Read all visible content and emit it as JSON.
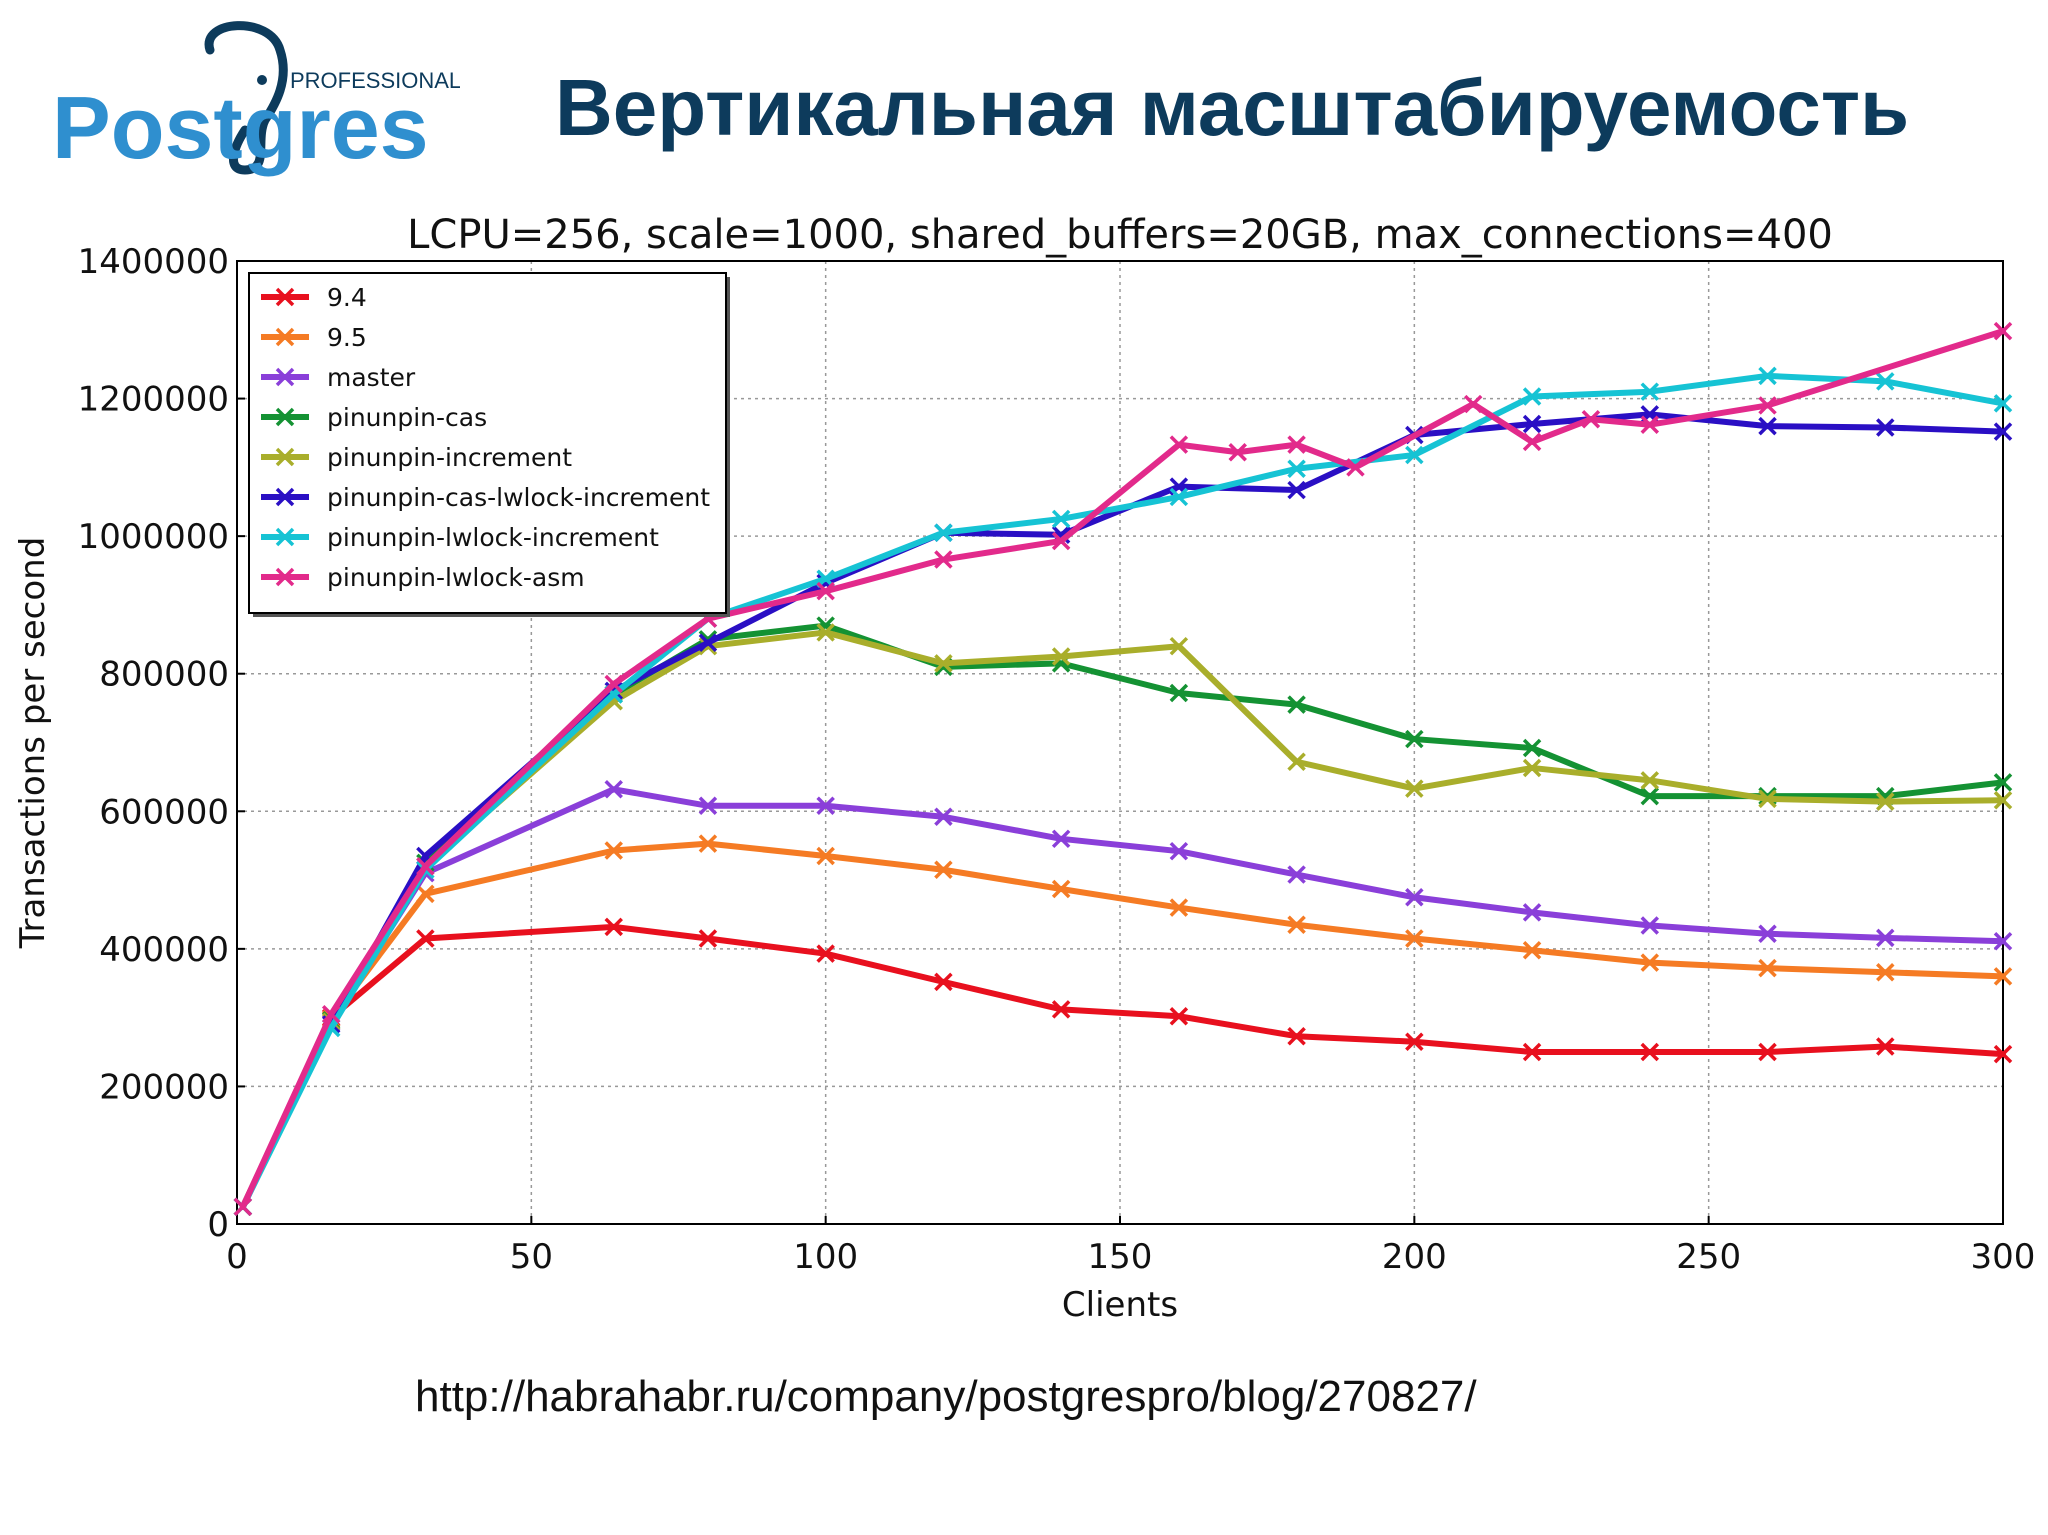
{
  "logo": {
    "word_small": "PROFESSIONAL",
    "word_main": "Postgres"
  },
  "slide": {
    "title": "Вертикальная масштабируемость",
    "source_url": "http://habrahabr.ru/company/postgrespro/blog/270827/"
  },
  "colors": {
    "title": "#0d3b5c",
    "logo_blue": "#2f8fcf",
    "logo_dark": "#0d3b5c"
  },
  "chart_data": {
    "type": "line",
    "title": "LCPU=256, scale=1000, shared_buffers=20GB, max_connections=400",
    "xlabel": "Clients",
    "ylabel": "Transactions per second",
    "xlim": [
      0,
      300
    ],
    "ylim": [
      0,
      1400000
    ],
    "xticks": [
      0,
      50,
      100,
      150,
      200,
      250,
      300
    ],
    "yticks": [
      0,
      200000,
      400000,
      600000,
      800000,
      1000000,
      1200000,
      1400000
    ],
    "grid": true,
    "legend_position": "top-left",
    "marker": "x",
    "series": [
      {
        "name": "9.4",
        "color": "#e8101e",
        "x": [
          1,
          16,
          32,
          64,
          80,
          100,
          120,
          140,
          160,
          180,
          200,
          220,
          240,
          260,
          280,
          300
        ],
        "y": [
          25000,
          300000,
          415000,
          432000,
          415000,
          393000,
          352000,
          312000,
          302000,
          273000,
          265000,
          250000,
          250000,
          250000,
          258000,
          247000
        ]
      },
      {
        "name": "9.5",
        "color": "#f57b24",
        "x": [
          1,
          16,
          32,
          64,
          80,
          100,
          120,
          140,
          160,
          180,
          200,
          220,
          240,
          260,
          280,
          300
        ],
        "y": [
          25000,
          298000,
          480000,
          543000,
          553000,
          535000,
          515000,
          487000,
          460000,
          435000,
          415000,
          398000,
          380000,
          372000,
          366000,
          360000
        ]
      },
      {
        "name": "master",
        "color": "#8a3fd9",
        "x": [
          1,
          16,
          32,
          64,
          80,
          100,
          120,
          140,
          160,
          180,
          200,
          220,
          240,
          260,
          280,
          300
        ],
        "y": [
          25000,
          292000,
          510000,
          632000,
          608000,
          608000,
          592000,
          560000,
          542000,
          508000,
          475000,
          453000,
          434000,
          422000,
          416000,
          411000
        ]
      },
      {
        "name": "pinunpin-cas",
        "color": "#149233",
        "x": [
          1,
          16,
          32,
          64,
          80,
          100,
          120,
          140,
          160,
          180,
          200,
          220,
          240,
          260,
          280,
          300
        ],
        "y": [
          25000,
          296000,
          525000,
          770000,
          850000,
          870000,
          810000,
          815000,
          772000,
          755000,
          705000,
          692000,
          622000,
          622000,
          622000,
          642000
        ]
      },
      {
        "name": "pinunpin-increment",
        "color": "#a9ae2b",
        "x": [
          1,
          16,
          32,
          64,
          80,
          100,
          120,
          140,
          160,
          180,
          200,
          220,
          240,
          260,
          280,
          300
        ],
        "y": [
          25000,
          294000,
          520000,
          760000,
          840000,
          860000,
          815000,
          825000,
          840000,
          672000,
          633000,
          663000,
          645000,
          618000,
          614000,
          616000
        ]
      },
      {
        "name": "pinunpin-cas-lwlock-increment",
        "color": "#2a0fc4",
        "x": [
          1,
          16,
          32,
          64,
          80,
          100,
          120,
          140,
          160,
          180,
          200,
          220,
          240,
          260,
          280,
          300
        ],
        "y": [
          25000,
          290000,
          535000,
          775000,
          845000,
          932000,
          1005000,
          1002000,
          1072000,
          1067000,
          1147000,
          1163000,
          1177000,
          1160000,
          1158000,
          1152000
        ]
      },
      {
        "name": "pinunpin-lwlock-increment",
        "color": "#16c3d4",
        "x": [
          1,
          16,
          32,
          64,
          80,
          100,
          120,
          140,
          160,
          180,
          200,
          220,
          240,
          260,
          280,
          300
        ],
        "y": [
          25000,
          285000,
          515000,
          770000,
          880000,
          938000,
          1005000,
          1025000,
          1057000,
          1098000,
          1118000,
          1203000,
          1210000,
          1233000,
          1225000,
          1193000
        ]
      },
      {
        "name": "pinunpin-lwlock-asm",
        "color": "#e22a8b",
        "x": [
          1,
          16,
          32,
          64,
          80,
          100,
          120,
          140,
          160,
          170,
          180,
          190,
          210,
          220,
          230,
          240,
          260,
          300
        ],
        "y": [
          25000,
          305000,
          520000,
          785000,
          880000,
          920000,
          966000,
          993000,
          1133000,
          1122000,
          1133000,
          1100000,
          1192000,
          1137000,
          1170000,
          1162000,
          1190000,
          1298000
        ]
      }
    ]
  }
}
